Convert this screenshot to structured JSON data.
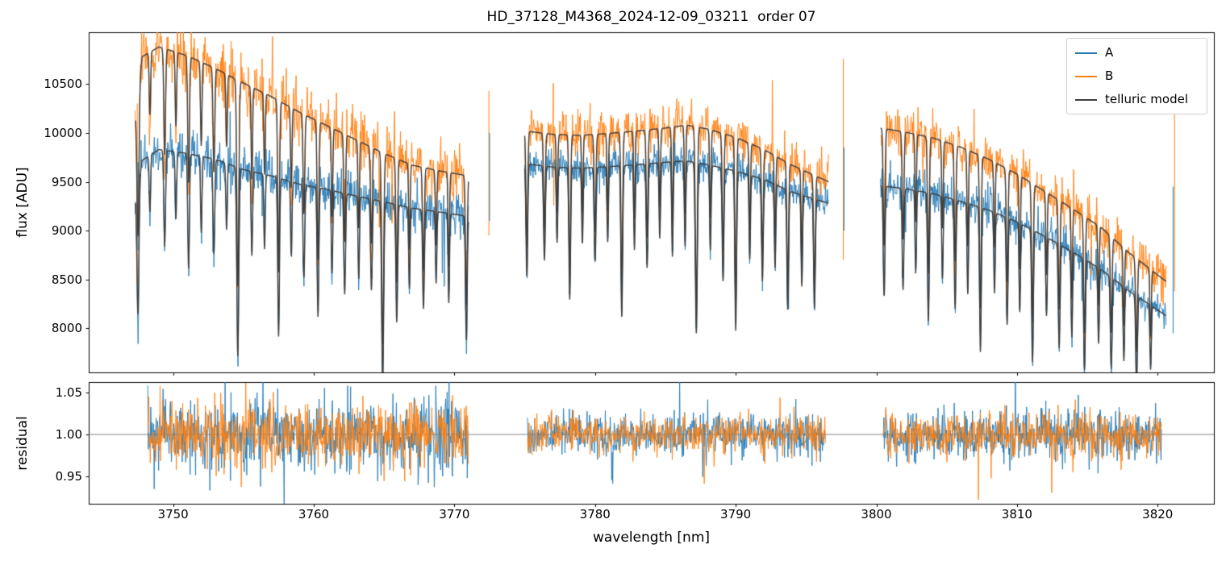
{
  "chart_data": {
    "type": "line",
    "title": "HD_37128_M4368_2024-12-09_03211  order 07",
    "xlabel": "wavelength [nm]",
    "legend": [
      "A",
      "B",
      "telluric model"
    ],
    "legend_position": "upper right",
    "grid": false,
    "series_colors": {
      "A": "#1f77b4",
      "B": "#ff7f0e",
      "telluric": "#3d3d3d"
    },
    "xlim": [
      3744,
      3824
    ],
    "x_ticks": {
      "values": [
        3750,
        3760,
        3770,
        3780,
        3790,
        3800,
        3810,
        3820
      ],
      "labels": [
        "3750",
        "3760",
        "3770",
        "3780",
        "3790",
        "3800",
        "3810",
        "3820"
      ]
    },
    "top_panel": {
      "ylabel": "flux [ADU]",
      "ylim": [
        7550,
        11030
      ],
      "y_ticks": {
        "values": [
          8000,
          8500,
          9000,
          9500,
          10000,
          10500
        ],
        "labels": [
          "8000",
          "8500",
          "9000",
          "9500",
          "10000",
          "10500"
        ]
      }
    },
    "bottom_panel": {
      "ylabel": "residual",
      "ylim": [
        0.918,
        1.062
      ],
      "baseline": 1.0,
      "y_ticks": {
        "values": [
          0.95,
          1.0,
          1.05
        ],
        "labels": [
          "0.95",
          "1.00",
          "1.05"
        ]
      }
    },
    "segments": [
      {
        "x_range": [
          3747.3,
          3771.0
        ],
        "residual_x_range": [
          3748.2,
          3771.0
        ],
        "continuum_A": [
          [
            3747.3,
            9300
          ],
          [
            3747.8,
            9720
          ],
          [
            3749,
            9830
          ],
          [
            3751,
            9790
          ],
          [
            3753,
            9730
          ],
          [
            3755,
            9625
          ],
          [
            3757,
            9560
          ],
          [
            3759,
            9475
          ],
          [
            3761,
            9420
          ],
          [
            3763,
            9355
          ],
          [
            3765,
            9295
          ],
          [
            3767,
            9230
          ],
          [
            3769,
            9190
          ],
          [
            3771,
            9145
          ]
        ],
        "continuum_B": [
          [
            3747.3,
            10150
          ],
          [
            3747.8,
            10780
          ],
          [
            3749,
            10880
          ],
          [
            3751,
            10790
          ],
          [
            3753,
            10660
          ],
          [
            3755,
            10510
          ],
          [
            3757,
            10370
          ],
          [
            3759,
            10210
          ],
          [
            3761,
            10070
          ],
          [
            3763,
            9930
          ],
          [
            3765,
            9790
          ],
          [
            3767,
            9670
          ],
          [
            3769,
            9610
          ],
          [
            3771,
            9560
          ]
        ],
        "telluric_lines": [
          [
            3747.5,
            0.14,
            0.07
          ],
          [
            3748.35,
            0.06,
            0.05
          ],
          [
            3749.4,
            0.1,
            0.06
          ],
          [
            3750.2,
            0.07,
            0.05
          ],
          [
            3751.1,
            0.12,
            0.06
          ],
          [
            3752.0,
            0.08,
            0.05
          ],
          [
            3752.9,
            0.1,
            0.06
          ],
          [
            3753.8,
            0.07,
            0.05
          ],
          [
            3754.6,
            0.2,
            0.07
          ],
          [
            3755.6,
            0.09,
            0.05
          ],
          [
            3756.5,
            0.08,
            0.05
          ],
          [
            3757.5,
            0.17,
            0.06
          ],
          [
            3758.4,
            0.08,
            0.05
          ],
          [
            3759.3,
            0.1,
            0.06
          ],
          [
            3760.3,
            0.14,
            0.06
          ],
          [
            3761.3,
            0.09,
            0.05
          ],
          [
            3762.2,
            0.11,
            0.06
          ],
          [
            3763.2,
            0.09,
            0.05
          ],
          [
            3764.1,
            0.1,
            0.06
          ],
          [
            3764.9,
            0.2,
            0.07
          ],
          [
            3765.9,
            0.13,
            0.06
          ],
          [
            3766.8,
            0.09,
            0.05
          ],
          [
            3767.8,
            0.11,
            0.06
          ],
          [
            3768.7,
            0.08,
            0.05
          ],
          [
            3769.6,
            0.1,
            0.05
          ],
          [
            3770.85,
            0.14,
            0.06
          ]
        ],
        "noise_rel_A": 0.012,
        "noise_rel_B": 0.015,
        "residual_sigma_A": 0.021,
        "residual_sigma_B": 0.019
      },
      {
        "x_range": [
          3775.0,
          3796.6
        ],
        "residual_x_range": [
          3775.2,
          3796.4
        ],
        "continuum_A": [
          [
            3775,
            9685
          ],
          [
            3777,
            9650
          ],
          [
            3779,
            9640
          ],
          [
            3781,
            9655
          ],
          [
            3783,
            9675
          ],
          [
            3785,
            9700
          ],
          [
            3786.5,
            9715
          ],
          [
            3788,
            9675
          ],
          [
            3790,
            9610
          ],
          [
            3792,
            9525
          ],
          [
            3794,
            9395
          ],
          [
            3796.6,
            9280
          ]
        ],
        "continuum_B": [
          [
            3775,
            10020
          ],
          [
            3777,
            9985
          ],
          [
            3779,
            9975
          ],
          [
            3781,
            9995
          ],
          [
            3783,
            10020
          ],
          [
            3785,
            10050
          ],
          [
            3786.5,
            10080
          ],
          [
            3788,
            10040
          ],
          [
            3790,
            9955
          ],
          [
            3792,
            9830
          ],
          [
            3794,
            9670
          ],
          [
            3796.6,
            9500
          ]
        ],
        "telluric_lines": [
          [
            3775.15,
            0.12,
            0.06
          ],
          [
            3776.4,
            0.1,
            0.06
          ],
          [
            3777.3,
            0.08,
            0.05
          ],
          [
            3778.2,
            0.14,
            0.06
          ],
          [
            3779.1,
            0.08,
            0.05
          ],
          [
            3780.0,
            0.1,
            0.06
          ],
          [
            3780.9,
            0.08,
            0.05
          ],
          [
            3781.9,
            0.16,
            0.06
          ],
          [
            3782.8,
            0.09,
            0.05
          ],
          [
            3783.7,
            0.11,
            0.06
          ],
          [
            3784.6,
            0.08,
            0.05
          ],
          [
            3785.5,
            0.1,
            0.05
          ],
          [
            3786.4,
            0.09,
            0.05
          ],
          [
            3787.2,
            0.18,
            0.07
          ],
          [
            3788.2,
            0.09,
            0.05
          ],
          [
            3789.1,
            0.12,
            0.06
          ],
          [
            3790.0,
            0.17,
            0.06
          ],
          [
            3791.0,
            0.09,
            0.05
          ],
          [
            3791.9,
            0.11,
            0.06
          ],
          [
            3792.8,
            0.09,
            0.05
          ],
          [
            3793.7,
            0.13,
            0.06
          ],
          [
            3794.7,
            0.1,
            0.05
          ],
          [
            3795.6,
            0.12,
            0.06
          ]
        ],
        "noise_rel_A": 0.009,
        "noise_rel_B": 0.011,
        "residual_sigma_A": 0.012,
        "residual_sigma_B": 0.011
      },
      {
        "x_range": [
          3800.3,
          3820.6
        ],
        "residual_x_range": [
          3800.5,
          3820.3
        ],
        "continuum_A": [
          [
            3800.3,
            9460
          ],
          [
            3802,
            9430
          ],
          [
            3804,
            9380
          ],
          [
            3806,
            9300
          ],
          [
            3808,
            9210
          ],
          [
            3810,
            9090
          ],
          [
            3812,
            8940
          ],
          [
            3814,
            8780
          ],
          [
            3816,
            8600
          ],
          [
            3818,
            8380
          ],
          [
            3820.6,
            8130
          ]
        ],
        "continuum_B": [
          [
            3800.3,
            10050
          ],
          [
            3802,
            10010
          ],
          [
            3804,
            9950
          ],
          [
            3806,
            9855
          ],
          [
            3808,
            9730
          ],
          [
            3810,
            9580
          ],
          [
            3812,
            9400
          ],
          [
            3814,
            9220
          ],
          [
            3816,
            9030
          ],
          [
            3818,
            8770
          ],
          [
            3820.6,
            8480
          ]
        ],
        "telluric_lines": [
          [
            3800.55,
            0.12,
            0.06
          ],
          [
            3801.9,
            0.11,
            0.06
          ],
          [
            3802.8,
            0.09,
            0.05
          ],
          [
            3803.7,
            0.14,
            0.06
          ],
          [
            3804.7,
            0.09,
            0.05
          ],
          [
            3805.6,
            0.12,
            0.06
          ],
          [
            3806.5,
            0.1,
            0.05
          ],
          [
            3807.4,
            0.16,
            0.06
          ],
          [
            3808.4,
            0.09,
            0.05
          ],
          [
            3809.3,
            0.12,
            0.06
          ],
          [
            3810.2,
            0.1,
            0.05
          ],
          [
            3811.1,
            0.15,
            0.06
          ],
          [
            3812.1,
            0.09,
            0.05
          ],
          [
            3813.0,
            0.12,
            0.06
          ],
          [
            3813.9,
            0.1,
            0.05
          ],
          [
            3814.8,
            0.13,
            0.06
          ],
          [
            3815.8,
            0.09,
            0.05
          ],
          [
            3816.7,
            0.11,
            0.06
          ],
          [
            3817.6,
            0.09,
            0.05
          ],
          [
            3818.5,
            0.11,
            0.06
          ],
          [
            3819.5,
            0.08,
            0.05
          ]
        ],
        "noise_rel_A": 0.011,
        "noise_rel_B": 0.013,
        "residual_sigma_A": 0.014,
        "residual_sigma_B": 0.013
      }
    ],
    "edge_spikes": [
      {
        "series": "B",
        "x": 3747.45,
        "flux_min": 8450,
        "flux_max": 10300
      },
      {
        "series": "A",
        "x": 3747.5,
        "flux_min": 8800,
        "flux_max": 9700
      },
      {
        "series": "B",
        "x": 3772.45,
        "flux_min": 8950,
        "flux_max": 10430
      },
      {
        "series": "A",
        "x": 3772.5,
        "flux_min": 9100,
        "flux_max": 10000
      },
      {
        "series": "B",
        "x": 3797.65,
        "flux_min": 8700,
        "flux_max": 10760
      },
      {
        "series": "A",
        "x": 3797.7,
        "flux_min": 9000,
        "flux_max": 9850
      },
      {
        "series": "B",
        "x": 3821.2,
        "flux_min": 8380,
        "flux_max": 10200
      },
      {
        "series": "A",
        "x": 3821.1,
        "flux_min": 7950,
        "flux_max": 9450
      }
    ]
  }
}
